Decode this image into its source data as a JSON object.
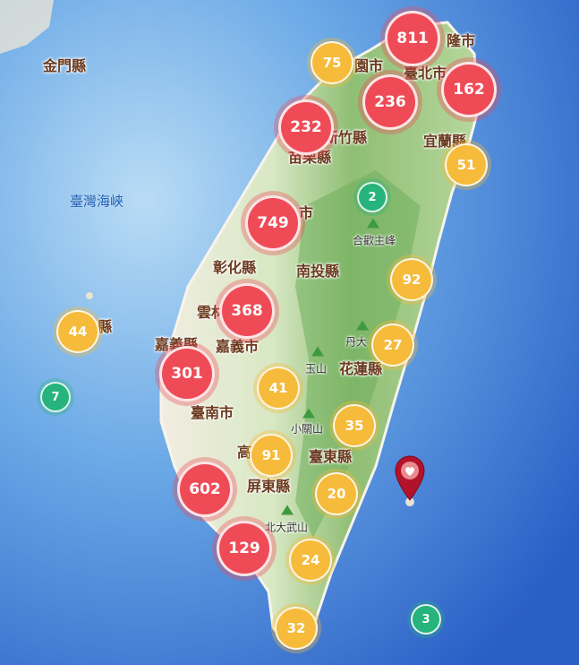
{
  "map": {
    "places": [
      {
        "id": "jinmen",
        "text": "金門縣"
      },
      {
        "id": "strait",
        "text": "臺灣海峽"
      },
      {
        "id": "keelung",
        "text": "隆市"
      },
      {
        "id": "taoyuan",
        "text": "園市"
      },
      {
        "id": "taipei",
        "text": "臺北市"
      },
      {
        "id": "hsinchu",
        "text": "新竹縣"
      },
      {
        "id": "yilan",
        "text": "宜蘭縣"
      },
      {
        "id": "miaoli",
        "text": "苗栗縣"
      },
      {
        "id": "taichung",
        "text": "市"
      },
      {
        "id": "changhua",
        "text": "彰化縣"
      },
      {
        "id": "nantou",
        "text": "南投縣"
      },
      {
        "id": "yunlin",
        "text": "雲林"
      },
      {
        "id": "chiayi_cty",
        "text": "嘉義縣"
      },
      {
        "id": "chiayi_city",
        "text": "嘉義市"
      },
      {
        "id": "hualien",
        "text": "花蓮縣"
      },
      {
        "id": "tainan",
        "text": "臺南市"
      },
      {
        "id": "taitung",
        "text": "臺東縣"
      },
      {
        "id": "pingtung",
        "text": "屏東縣"
      },
      {
        "id": "kaohsiung",
        "text": "高"
      },
      {
        "id": "penghu",
        "text": "縣"
      }
    ],
    "mountains": [
      {
        "id": "hehuan",
        "text": "合歡主峰"
      },
      {
        "id": "yushan",
        "text": "玉山"
      },
      {
        "id": "danda",
        "text": "丹大"
      },
      {
        "id": "xiaoguan",
        "text": "小關山"
      },
      {
        "id": "beidawu",
        "text": "北大武山"
      }
    ],
    "clusters": [
      {
        "id": "c811",
        "count": "811",
        "level": "red"
      },
      {
        "id": "c75",
        "count": "75",
        "level": "yellow"
      },
      {
        "id": "c236",
        "count": "236",
        "level": "red"
      },
      {
        "id": "c162",
        "count": "162",
        "level": "red"
      },
      {
        "id": "c232",
        "count": "232",
        "level": "red"
      },
      {
        "id": "c51",
        "count": "51",
        "level": "yellow"
      },
      {
        "id": "c2",
        "count": "2",
        "level": "green"
      },
      {
        "id": "c749",
        "count": "749",
        "level": "red"
      },
      {
        "id": "c92",
        "count": "92",
        "level": "yellow"
      },
      {
        "id": "c368",
        "count": "368",
        "level": "red"
      },
      {
        "id": "c44",
        "count": "44",
        "level": "yellow"
      },
      {
        "id": "c27",
        "count": "27",
        "level": "yellow"
      },
      {
        "id": "c301",
        "count": "301",
        "level": "red"
      },
      {
        "id": "c7",
        "count": "7",
        "level": "green"
      },
      {
        "id": "c41",
        "count": "41",
        "level": "yellow"
      },
      {
        "id": "c35",
        "count": "35",
        "level": "yellow"
      },
      {
        "id": "c91",
        "count": "91",
        "level": "yellow"
      },
      {
        "id": "c602",
        "count": "602",
        "level": "red"
      },
      {
        "id": "c20",
        "count": "20",
        "level": "yellow"
      },
      {
        "id": "c129",
        "count": "129",
        "level": "red"
      },
      {
        "id": "c24",
        "count": "24",
        "level": "yellow"
      },
      {
        "id": "c32",
        "count": "32",
        "level": "yellow"
      },
      {
        "id": "c3",
        "count": "3",
        "level": "green"
      }
    ],
    "colors": {
      "sea_deep": "#2a63c9",
      "sea_shallow": "#8fc3ec",
      "land_green": "#9fcb86",
      "cluster_red": "#ef4b57",
      "cluster_yellow": "#f6bb3a",
      "cluster_green": "#27b37c",
      "pin": "#b3122b"
    },
    "icons": {
      "pin": "map-pin-heart-icon",
      "peak": "mountain-peak-icon"
    }
  }
}
